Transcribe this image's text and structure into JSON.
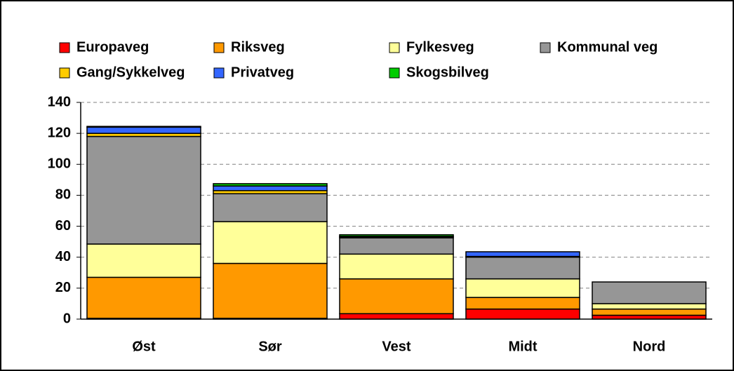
{
  "chart_data": {
    "type": "stacked_bar",
    "categories": [
      "Øst",
      "Sør",
      "Vest",
      "Midt",
      "Nord"
    ],
    "series": [
      {
        "name": "Europaveg",
        "color": "#ff0000",
        "values": [
          0.5,
          0.5,
          3.5,
          6.5,
          2.5
        ]
      },
      {
        "name": "Riksveg",
        "color": "#ff9900",
        "values": [
          26.5,
          35.5,
          22.5,
          7.5,
          4
        ]
      },
      {
        "name": "Fylkesveg",
        "color": "#ffff99",
        "values": [
          21.5,
          27,
          16,
          12,
          3.5
        ]
      },
      {
        "name": "Kommunal veg",
        "color": "#969696",
        "values": [
          69.5,
          18,
          10.5,
          14,
          14
        ]
      },
      {
        "name": "Gang/Sykkelveg",
        "color": "#ffcc00",
        "values": [
          2,
          2,
          0.5,
          0.5,
          0
        ]
      },
      {
        "name": "Privatveg",
        "color": "#3366ff",
        "values": [
          4,
          3,
          0.5,
          3,
          0
        ]
      },
      {
        "name": "Skogsbilveg",
        "color": "#00cc00",
        "values": [
          0.5,
          1.5,
          1,
          0,
          0
        ]
      }
    ],
    "ylim": [
      0,
      140
    ],
    "yticks": [
      0,
      20,
      40,
      60,
      80,
      100,
      120,
      140
    ],
    "grid": true
  }
}
